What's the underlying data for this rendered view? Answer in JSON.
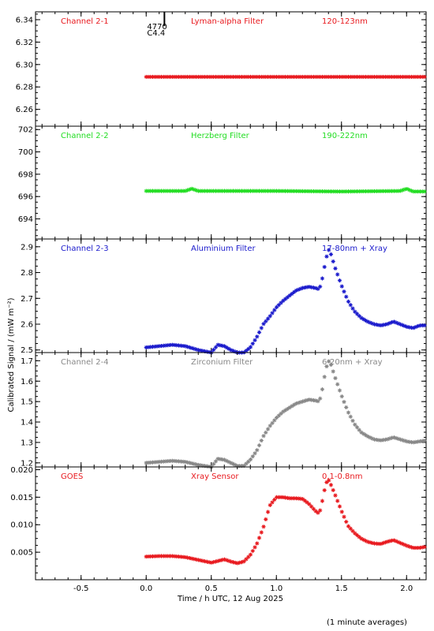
{
  "chart_data": [
    {
      "type": "scatter",
      "channel_label": "Channel 2-1",
      "filter_label": "Lyman-alpha Filter",
      "band_label": "120-123nm",
      "color": "#e8191e",
      "ylim": [
        6.245,
        6.347
      ],
      "yticks": [
        "6.26",
        "6.28",
        "6.30",
        "6.32",
        "6.34"
      ],
      "ytick_values": [
        6.26,
        6.28,
        6.3,
        6.32,
        6.34
      ],
      "annotations": [
        "4770",
        "C4.4"
      ],
      "flare_marker_x": 0.14,
      "series": [
        {
          "x": [
            0.0,
            2.15
          ],
          "y": [
            6.289,
            6.289
          ],
          "style": "flat"
        }
      ]
    },
    {
      "type": "scatter",
      "channel_label": "Channel 2-2",
      "filter_label": "Herzberg Filter",
      "band_label": "190-222nm",
      "color": "#22dd22",
      "ylim": [
        692.2,
        702.3
      ],
      "yticks": [
        "694",
        "696",
        "698",
        "700",
        "702"
      ],
      "ytick_values": [
        694,
        696,
        698,
        700,
        702
      ],
      "series": [
        {
          "x": [
            0.0,
            0.3,
            0.35,
            0.4,
            1.0,
            1.5,
            1.95,
            2.0,
            2.05,
            2.15
          ],
          "y": [
            696.5,
            696.5,
            696.7,
            696.5,
            696.5,
            696.45,
            696.5,
            696.7,
            696.45,
            696.45
          ],
          "style": "curve"
        }
      ]
    },
    {
      "type": "scatter",
      "channel_label": "Channel 2-3",
      "filter_label": "Aluminium Filter",
      "band_label": "17-80nm + Xray",
      "color": "#1a1acc",
      "ylim": [
        2.49,
        2.93
      ],
      "yticks": [
        "2.5",
        "2.6",
        "2.7",
        "2.8",
        "2.9"
      ],
      "ytick_values": [
        2.5,
        2.6,
        2.7,
        2.8,
        2.9
      ],
      "series": [
        {
          "x": [
            0.0,
            0.1,
            0.2,
            0.3,
            0.4,
            0.5,
            0.55,
            0.6,
            0.65,
            0.7,
            0.75,
            0.8,
            0.85,
            0.9,
            0.95,
            1.0,
            1.05,
            1.1,
            1.15,
            1.2,
            1.25,
            1.3,
            1.33,
            1.35,
            1.38,
            1.4,
            1.42,
            1.45,
            1.5,
            1.55,
            1.6,
            1.65,
            1.7,
            1.75,
            1.8,
            1.85,
            1.9,
            1.95,
            2.0,
            2.05,
            2.1,
            2.15
          ],
          "y": [
            2.51,
            2.515,
            2.52,
            2.515,
            2.5,
            2.49,
            2.52,
            2.515,
            2.5,
            2.49,
            2.49,
            2.51,
            2.55,
            2.6,
            2.63,
            2.665,
            2.69,
            2.71,
            2.73,
            2.74,
            2.745,
            2.74,
            2.735,
            2.77,
            2.85,
            2.89,
            2.87,
            2.82,
            2.75,
            2.69,
            2.65,
            2.625,
            2.61,
            2.6,
            2.595,
            2.6,
            2.61,
            2.6,
            2.59,
            2.585,
            2.595,
            2.595
          ],
          "style": "curve"
        }
      ]
    },
    {
      "type": "scatter",
      "channel_label": "Channel 2-4",
      "filter_label": "Zirconium Filter",
      "band_label": "6-20nm + Xray",
      "color": "#888888",
      "ylim": [
        1.18,
        1.74
      ],
      "yticks": [
        "1.2",
        "1.3",
        "1.4",
        "1.5",
        "1.6",
        "1.7"
      ],
      "ytick_values": [
        1.2,
        1.3,
        1.4,
        1.5,
        1.6,
        1.7
      ],
      "series": [
        {
          "x": [
            0.0,
            0.1,
            0.2,
            0.3,
            0.4,
            0.5,
            0.55,
            0.6,
            0.65,
            0.7,
            0.75,
            0.8,
            0.85,
            0.9,
            0.95,
            1.0,
            1.05,
            1.1,
            1.15,
            1.2,
            1.25,
            1.3,
            1.33,
            1.35,
            1.38,
            1.4,
            1.42,
            1.45,
            1.5,
            1.55,
            1.6,
            1.65,
            1.7,
            1.75,
            1.8,
            1.85,
            1.9,
            1.95,
            2.0,
            2.05,
            2.1,
            2.15
          ],
          "y": [
            1.2,
            1.205,
            1.21,
            1.205,
            1.19,
            1.18,
            1.22,
            1.215,
            1.2,
            1.185,
            1.185,
            1.215,
            1.26,
            1.33,
            1.38,
            1.42,
            1.45,
            1.47,
            1.49,
            1.5,
            1.51,
            1.505,
            1.5,
            1.55,
            1.66,
            1.7,
            1.68,
            1.62,
            1.53,
            1.45,
            1.39,
            1.35,
            1.33,
            1.315,
            1.31,
            1.315,
            1.325,
            1.315,
            1.305,
            1.3,
            1.305,
            1.31
          ],
          "style": "curve"
        }
      ]
    },
    {
      "type": "scatter",
      "channel_label": "GOES",
      "filter_label": "Xray Sensor",
      "band_label": "0.1-0.8nm",
      "color": "#e8191e",
      "ylim": [
        0.0,
        0.0205
      ],
      "yticks": [
        "0.005",
        "0.010",
        "0.015",
        "0.020"
      ],
      "ytick_values": [
        0.005,
        0.01,
        0.015,
        0.02
      ],
      "series": [
        {
          "x": [
            0.0,
            0.1,
            0.2,
            0.3,
            0.4,
            0.5,
            0.55,
            0.6,
            0.65,
            0.7,
            0.75,
            0.8,
            0.85,
            0.9,
            0.95,
            1.0,
            1.05,
            1.1,
            1.15,
            1.2,
            1.25,
            1.3,
            1.33,
            1.35,
            1.38,
            1.4,
            1.42,
            1.45,
            1.5,
            1.55,
            1.6,
            1.65,
            1.7,
            1.75,
            1.8,
            1.85,
            1.9,
            1.95,
            2.0,
            2.05,
            2.1,
            2.15
          ],
          "y": [
            0.0042,
            0.0043,
            0.0043,
            0.0041,
            0.0036,
            0.0031,
            0.0034,
            0.0037,
            0.0033,
            0.003,
            0.0033,
            0.0045,
            0.0065,
            0.0095,
            0.0135,
            0.015,
            0.015,
            0.0148,
            0.0148,
            0.0147,
            0.0138,
            0.0125,
            0.012,
            0.014,
            0.0175,
            0.0182,
            0.0172,
            0.0155,
            0.0125,
            0.0098,
            0.0085,
            0.0075,
            0.0069,
            0.0066,
            0.0065,
            0.0069,
            0.0072,
            0.0067,
            0.0062,
            0.0058,
            0.0058,
            0.006
          ],
          "style": "curve"
        }
      ]
    }
  ],
  "x_axis": {
    "xlim": [
      -0.85,
      2.15
    ],
    "ticks": [
      "-0.5",
      "0.0",
      "0.5",
      "1.0",
      "1.5",
      "2.0"
    ],
    "tick_values": [
      -0.5,
      0.0,
      0.5,
      1.0,
      1.5,
      2.0
    ],
    "xlabel": "Time / h UTC, 12 Aug 2025"
  },
  "ylabel": "Calibrated Signal / (mW m⁻²)",
  "footnote": "(1 minute averages)"
}
